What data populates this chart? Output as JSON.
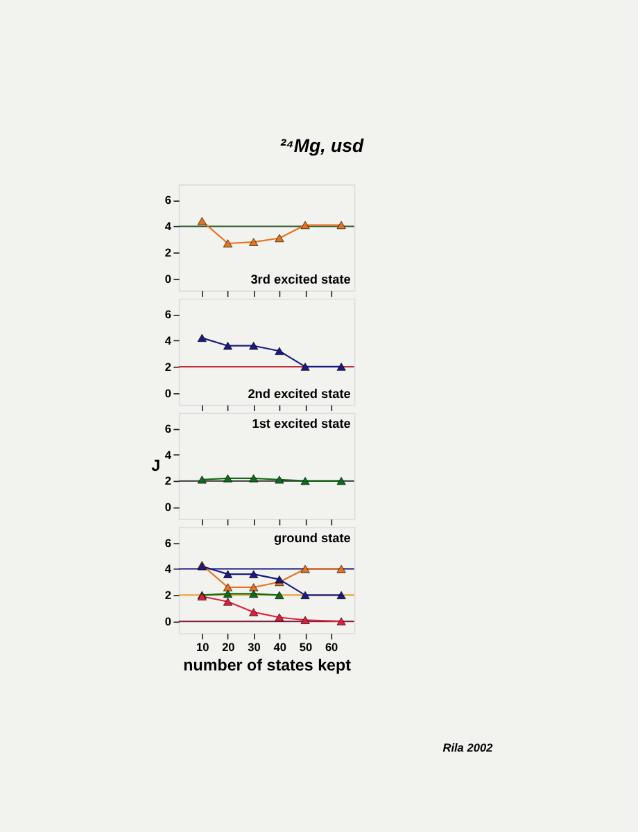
{
  "chart_data": [
    {
      "type": "line",
      "title": "²⁴Mg, usd",
      "annotations": [
        "3rd excited state"
      ],
      "x": [
        10,
        20,
        30,
        40,
        50,
        64
      ],
      "xlim": [
        1,
        69
      ],
      "xticks": [
        10,
        20,
        30,
        40,
        50,
        60
      ],
      "ylim": [
        -0.9,
        7.2
      ],
      "yticks": [
        0,
        2,
        4,
        6
      ],
      "tick_labels": "y",
      "marker": "triangle",
      "line_style": "solid",
      "grid": false,
      "series": [
        {
          "color": "#e8731e",
          "values": [
            4.4,
            2.7,
            2.8,
            3.1,
            4.1,
            4.1
          ]
        }
      ],
      "ref_lines": [
        {
          "axis": "y",
          "value": 4,
          "color": "#2a5a2a"
        }
      ]
    },
    {
      "type": "line",
      "annotations": [
        "2nd excited state"
      ],
      "x": [
        10,
        20,
        30,
        40,
        50,
        64
      ],
      "xlim": [
        1,
        69
      ],
      "xticks": [
        10,
        20,
        30,
        40,
        50,
        60
      ],
      "ylim": [
        -0.9,
        7.2
      ],
      "yticks": [
        0,
        2,
        4,
        6
      ],
      "tick_labels": "y",
      "marker": "triangle",
      "line_style": "solid",
      "grid": false,
      "series": [
        {
          "color": "#1a1a80",
          "values": [
            4.2,
            3.6,
            3.6,
            3.2,
            2.0,
            2.0
          ]
        }
      ],
      "ref_lines": [
        {
          "axis": "y",
          "value": 2,
          "color": "#c0303a"
        }
      ]
    },
    {
      "type": "line",
      "annotations": [
        "1st excited state"
      ],
      "ylabel": "J",
      "x": [
        10,
        20,
        30,
        40,
        50,
        64
      ],
      "xlim": [
        1,
        69
      ],
      "xticks": [
        10,
        20,
        30,
        40,
        50,
        60
      ],
      "ylim": [
        -0.9,
        7.2
      ],
      "yticks": [
        0,
        2,
        4,
        6
      ],
      "tick_labels": "y",
      "marker": "triangle",
      "line_style": "solid",
      "grid": false,
      "series": [
        {
          "color": "#0f6b1a",
          "values": [
            2.1,
            2.2,
            2.2,
            2.1,
            2.0,
            2.0
          ]
        }
      ],
      "ref_lines": [
        {
          "axis": "y",
          "value": 2,
          "color": "#333333"
        }
      ]
    },
    {
      "type": "line",
      "annotations": [
        "ground state",
        "Rila 2002"
      ],
      "xlabel": "number of states kept",
      "x": [
        10,
        20,
        30,
        40,
        50,
        64
      ],
      "xlim": [
        1,
        69
      ],
      "xticks": [
        10,
        20,
        30,
        40,
        50,
        60
      ],
      "ylim": [
        -0.9,
        7.2
      ],
      "yticks": [
        0,
        2,
        4,
        6
      ],
      "marker": "triangle",
      "line_style": "solid",
      "grid": false,
      "series": [
        {
          "color": "#e8731e",
          "values": [
            4.3,
            2.6,
            2.6,
            3.0,
            4.0,
            4.0
          ]
        },
        {
          "color": "#1a1a80",
          "values": [
            4.2,
            3.6,
            3.6,
            3.2,
            2.0,
            2.0
          ]
        },
        {
          "color": "#0f6b1a",
          "values": [
            2.0,
            2.1,
            2.1,
            2.0,
            null,
            null
          ]
        },
        {
          "color": "#e0203a",
          "values": [
            1.9,
            1.5,
            0.7,
            0.3,
            0.1,
            0.0
          ]
        }
      ],
      "ref_lines": [
        {
          "axis": "y",
          "value": 4,
          "color": "#1a1a80"
        },
        {
          "axis": "y",
          "value": 2,
          "color": "#e8a030"
        },
        {
          "axis": "y",
          "value": 0,
          "color": "#802040"
        }
      ]
    }
  ]
}
